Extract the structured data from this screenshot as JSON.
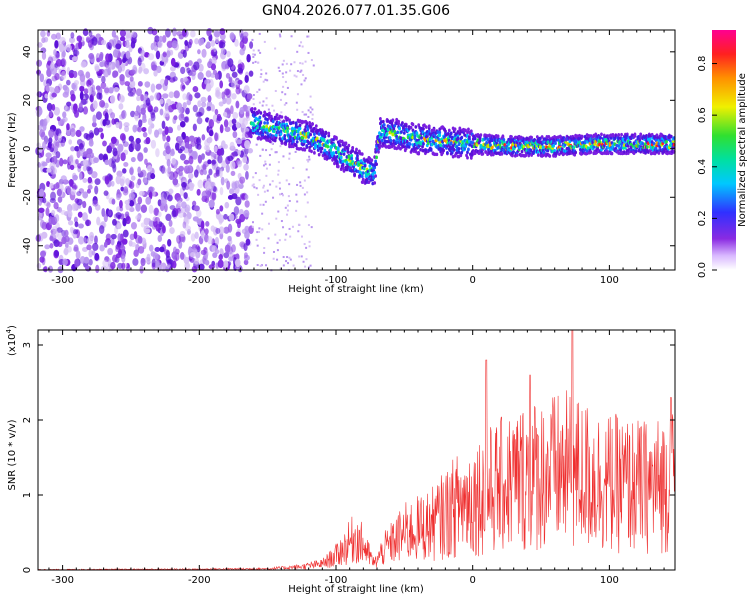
{
  "title": "GN04.2026.077.01.35.G06",
  "colors": {
    "snr_line": "#ef3030",
    "point_purple": "#7a1fe0",
    "point_light": "#c8a8f0"
  },
  "chart_data": [
    {
      "type": "heatmap",
      "name": "spectrogram",
      "xlabel": "Height of straight line (km)",
      "ylabel": "Frequency (Hz)",
      "xlim": [
        -318,
        148
      ],
      "ylim": [
        -50,
        49
      ],
      "xticks": [
        -300,
        -200,
        -100,
        0,
        100
      ],
      "yticks": [
        -40,
        -20,
        0,
        20,
        40
      ],
      "colorbar": {
        "label": "Normalized spectral amplitude",
        "range": [
          0,
          0.93
        ],
        "ticks": [
          0.0,
          0.2,
          0.4,
          0.6,
          0.8
        ]
      },
      "ridge": [
        {
          "x": -162,
          "f": 11
        },
        {
          "x": -150,
          "f": 9
        },
        {
          "x": -135,
          "f": 7
        },
        {
          "x": -120,
          "f": 5
        },
        {
          "x": -105,
          "f": 1
        },
        {
          "x": -95,
          "f": -3
        },
        {
          "x": -85,
          "f": -6
        },
        {
          "x": -78,
          "f": -9
        },
        {
          "x": -72,
          "f": -10
        },
        {
          "x": -68,
          "f": 7
        },
        {
          "x": -55,
          "f": 6
        },
        {
          "x": -40,
          "f": 4
        },
        {
          "x": -20,
          "f": 3
        },
        {
          "x": 0,
          "f": 2
        },
        {
          "x": 30,
          "f": 1
        },
        {
          "x": 60,
          "f": 1
        },
        {
          "x": 90,
          "f": 2
        },
        {
          "x": 120,
          "f": 2
        },
        {
          "x": 148,
          "f": 2
        }
      ]
    },
    {
      "type": "line",
      "name": "snr",
      "xlabel": "Height of straight line (km)",
      "ylabel": "SNR (10 * v/v)",
      "yscale_label_base": "(x10",
      "yscale_label_exp": "4",
      "yscale_label_end": ")",
      "xlim": [
        -318,
        148
      ],
      "ylim": [
        0,
        3.2
      ],
      "xticks": [
        -300,
        -200,
        -100,
        0,
        100
      ],
      "yticks": [
        0,
        1,
        2,
        3
      ],
      "envelope": [
        {
          "x": -318,
          "y": 0.01
        },
        {
          "x": -200,
          "y": 0.02
        },
        {
          "x": -150,
          "y": 0.03
        },
        {
          "x": -125,
          "y": 0.08
        },
        {
          "x": -110,
          "y": 0.15
        },
        {
          "x": -100,
          "y": 0.35
        },
        {
          "x": -92,
          "y": 0.6
        },
        {
          "x": -86,
          "y": 0.8
        },
        {
          "x": -80,
          "y": 0.6
        },
        {
          "x": -72,
          "y": 0.15
        },
        {
          "x": -65,
          "y": 0.5
        },
        {
          "x": -50,
          "y": 0.9
        },
        {
          "x": -30,
          "y": 1.1
        },
        {
          "x": -10,
          "y": 1.6
        },
        {
          "x": 10,
          "y": 1.9
        },
        {
          "x": 40,
          "y": 2.3
        },
        {
          "x": 70,
          "y": 2.4
        },
        {
          "x": 100,
          "y": 2.1
        },
        {
          "x": 130,
          "y": 2.0
        },
        {
          "x": 148,
          "y": 2.2
        }
      ],
      "peaks": [
        {
          "x": 10,
          "y": 2.8
        },
        {
          "x": 73,
          "y": 3.2
        },
        {
          "x": 42,
          "y": 2.6
        },
        {
          "x": 145,
          "y": 2.3
        }
      ]
    }
  ]
}
